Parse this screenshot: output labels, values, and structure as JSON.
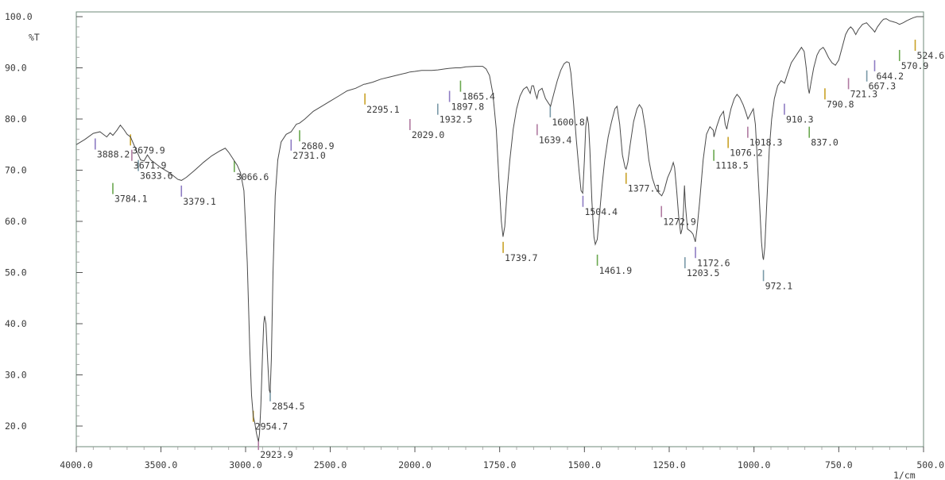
{
  "chart_data": {
    "type": "line",
    "title": "",
    "xlabel": "",
    "ylabel": "%T",
    "xunit": "1/cm",
    "xlim": [
      4000.0,
      500.0
    ],
    "ylim": [
      15.0,
      100.0
    ],
    "grid": false,
    "x_ticks": [
      "4000.0",
      "3500.0",
      "3000.0",
      "2500.0",
      "2000.0",
      "1750.0",
      "1500.0",
      "1250.0",
      "1000.0",
      "750.0",
      "500.0"
    ],
    "y_ticks": [
      "100.0",
      "90.0",
      "80.0",
      "70.0",
      "60.0",
      "50.0",
      "40.0",
      "30.0",
      "20.0"
    ],
    "series": [
      {
        "values": [
          [
            4000,
            75.0
          ],
          [
            3950,
            76.0
          ],
          [
            3900,
            77.2
          ],
          [
            3860,
            77.5
          ],
          [
            3820,
            76.5
          ],
          [
            3800,
            77.3
          ],
          [
            3784,
            76.8
          ],
          [
            3760,
            77.8
          ],
          [
            3740,
            78.8
          ],
          [
            3720,
            78.0
          ],
          [
            3700,
            77.0
          ],
          [
            3680,
            76.5
          ],
          [
            3660,
            75.0
          ],
          [
            3640,
            73.5
          ],
          [
            3620,
            72.0
          ],
          [
            3600,
            71.8
          ],
          [
            3580,
            73.0
          ],
          [
            3560,
            72.0
          ],
          [
            3540,
            71.5
          ],
          [
            3520,
            71.0
          ],
          [
            3500,
            70.5
          ],
          [
            3450,
            69.5
          ],
          [
            3400,
            68.2
          ],
          [
            3379,
            68.0
          ],
          [
            3350,
            68.6
          ],
          [
            3300,
            70.0
          ],
          [
            3250,
            71.5
          ],
          [
            3200,
            72.8
          ],
          [
            3150,
            73.8
          ],
          [
            3120,
            74.3
          ],
          [
            3100,
            73.5
          ],
          [
            3080,
            72.5
          ],
          [
            3066,
            71.8
          ],
          [
            3050,
            71.0
          ],
          [
            3030,
            69.5
          ],
          [
            3010,
            66.0
          ],
          [
            2990,
            52.0
          ],
          [
            2975,
            35.0
          ],
          [
            2965,
            26.0
          ],
          [
            2955,
            22.0
          ],
          [
            2945,
            20.5
          ],
          [
            2935,
            18.5
          ],
          [
            2928,
            17.5
          ],
          [
            2924,
            17.0
          ],
          [
            2918,
            18.5
          ],
          [
            2910,
            24.0
          ],
          [
            2900,
            34.0
          ],
          [
            2893,
            40.0
          ],
          [
            2888,
            41.5
          ],
          [
            2880,
            40.0
          ],
          [
            2870,
            33.0
          ],
          [
            2860,
            27.0
          ],
          [
            2855,
            26.5
          ],
          [
            2848,
            33.0
          ],
          [
            2838,
            50.0
          ],
          [
            2825,
            65.0
          ],
          [
            2810,
            72.0
          ],
          [
            2790,
            75.5
          ],
          [
            2760,
            77.0
          ],
          [
            2731,
            77.5
          ],
          [
            2700,
            79.0
          ],
          [
            2681,
            79.2
          ],
          [
            2650,
            80.0
          ],
          [
            2600,
            81.5
          ],
          [
            2550,
            82.5
          ],
          [
            2500,
            83.5
          ],
          [
            2450,
            84.5
          ],
          [
            2400,
            85.5
          ],
          [
            2350,
            86.0
          ],
          [
            2300,
            86.8
          ],
          [
            2295,
            86.8
          ],
          [
            2250,
            87.2
          ],
          [
            2200,
            87.8
          ],
          [
            2150,
            88.2
          ],
          [
            2100,
            88.6
          ],
          [
            2050,
            89.0
          ],
          [
            2029,
            89.2
          ],
          [
            2000,
            89.3
          ],
          [
            1980,
            89.5
          ],
          [
            1950,
            89.5
          ],
          [
            1932,
            89.6
          ],
          [
            1910,
            89.8
          ],
          [
            1898,
            89.9
          ],
          [
            1880,
            90.0
          ],
          [
            1866,
            90.0
          ],
          [
            1850,
            90.2
          ],
          [
            1820,
            90.3
          ],
          [
            1800,
            90.3
          ],
          [
            1790,
            89.8
          ],
          [
            1780,
            88.5
          ],
          [
            1770,
            85.0
          ],
          [
            1760,
            78.0
          ],
          [
            1752,
            68.0
          ],
          [
            1745,
            60.0
          ],
          [
            1740,
            57.0
          ],
          [
            1735,
            59.0
          ],
          [
            1728,
            66.0
          ],
          [
            1720,
            72.0
          ],
          [
            1710,
            78.0
          ],
          [
            1700,
            82.0
          ],
          [
            1690,
            84.5
          ],
          [
            1680,
            85.8
          ],
          [
            1670,
            86.3
          ],
          [
            1660,
            85.0
          ],
          [
            1655,
            86.5
          ],
          [
            1650,
            86.5
          ],
          [
            1645,
            85.0
          ],
          [
            1640,
            84.0
          ],
          [
            1635,
            85.5
          ],
          [
            1625,
            86.0
          ],
          [
            1615,
            84.0
          ],
          [
            1605,
            83.0
          ],
          [
            1600,
            82.5
          ],
          [
            1590,
            85.0
          ],
          [
            1580,
            87.5
          ],
          [
            1570,
            89.5
          ],
          [
            1560,
            90.8
          ],
          [
            1552,
            91.2
          ],
          [
            1545,
            91.0
          ],
          [
            1540,
            89.0
          ],
          [
            1532,
            83.0
          ],
          [
            1524,
            76.0
          ],
          [
            1516,
            70.0
          ],
          [
            1510,
            66.0
          ],
          [
            1505,
            65.5
          ],
          [
            1500,
            72.0
          ],
          [
            1496,
            78.5
          ],
          [
            1492,
            80.5
          ],
          [
            1488,
            79.0
          ],
          [
            1484,
            74.0
          ],
          [
            1478,
            64.0
          ],
          [
            1472,
            57.0
          ],
          [
            1468,
            55.5
          ],
          [
            1462,
            56.5
          ],
          [
            1456,
            61.0
          ],
          [
            1448,
            67.0
          ],
          [
            1440,
            72.0
          ],
          [
            1430,
            76.5
          ],
          [
            1420,
            79.5
          ],
          [
            1410,
            82.0
          ],
          [
            1404,
            82.5
          ],
          [
            1396,
            79.0
          ],
          [
            1388,
            73.0
          ],
          [
            1380,
            70.5
          ],
          [
            1377,
            70.2
          ],
          [
            1372,
            71.5
          ],
          [
            1365,
            75.0
          ],
          [
            1355,
            79.5
          ],
          [
            1345,
            82.0
          ],
          [
            1338,
            82.8
          ],
          [
            1330,
            82.0
          ],
          [
            1320,
            78.0
          ],
          [
            1310,
            72.0
          ],
          [
            1300,
            68.5
          ],
          [
            1290,
            66.5
          ],
          [
            1280,
            65.5
          ],
          [
            1272,
            65.0
          ],
          [
            1265,
            66.0
          ],
          [
            1255,
            68.5
          ],
          [
            1245,
            70.0
          ],
          [
            1238,
            71.5
          ],
          [
            1234,
            70.5
          ],
          [
            1228,
            66.0
          ],
          [
            1222,
            61.0
          ],
          [
            1216,
            57.5
          ],
          [
            1212,
            58.5
          ],
          [
            1208,
            62.0
          ],
          [
            1205,
            67.0
          ],
          [
            1202,
            63.0
          ],
          [
            1196,
            58.5
          ],
          [
            1186,
            58.0
          ],
          [
            1180,
            57.5
          ],
          [
            1173,
            56.0
          ],
          [
            1168,
            58.5
          ],
          [
            1160,
            64.0
          ],
          [
            1150,
            72.0
          ],
          [
            1140,
            77.0
          ],
          [
            1130,
            78.5
          ],
          [
            1120,
            77.8
          ],
          [
            1118,
            76.5
          ],
          [
            1110,
            78.5
          ],
          [
            1100,
            80.5
          ],
          [
            1090,
            81.5
          ],
          [
            1085,
            79.0
          ],
          [
            1080,
            78.0
          ],
          [
            1076,
            79.5
          ],
          [
            1068,
            82.0
          ],
          [
            1058,
            84.0
          ],
          [
            1050,
            84.8
          ],
          [
            1042,
            84.2
          ],
          [
            1032,
            82.8
          ],
          [
            1025,
            81.5
          ],
          [
            1018,
            80.0
          ],
          [
            1010,
            81.0
          ],
          [
            1002,
            82.0
          ],
          [
            996,
            79.0
          ],
          [
            990,
            72.0
          ],
          [
            984,
            64.0
          ],
          [
            978,
            56.0
          ],
          [
            974,
            53.0
          ],
          [
            972,
            52.5
          ],
          [
            968,
            55.0
          ],
          [
            962,
            64.0
          ],
          [
            955,
            74.0
          ],
          [
            948,
            80.0
          ],
          [
            940,
            84.0
          ],
          [
            930,
            86.5
          ],
          [
            920,
            87.5
          ],
          [
            910,
            87.0
          ],
          [
            900,
            89.0
          ],
          [
            890,
            91.0
          ],
          [
            880,
            92.0
          ],
          [
            870,
            93.0
          ],
          [
            860,
            94.0
          ],
          [
            852,
            93.2
          ],
          [
            846,
            90.0
          ],
          [
            840,
            86.0
          ],
          [
            837,
            85.0
          ],
          [
            832,
            87.0
          ],
          [
            824,
            90.0
          ],
          [
            814,
            92.5
          ],
          [
            806,
            93.5
          ],
          [
            796,
            94.0
          ],
          [
            791,
            93.5
          ],
          [
            780,
            92.0
          ],
          [
            770,
            91.0
          ],
          [
            760,
            90.5
          ],
          [
            750,
            91.5
          ],
          [
            740,
            94.0
          ],
          [
            730,
            96.5
          ],
          [
            722,
            97.5
          ],
          [
            715,
            98.0
          ],
          [
            708,
            97.5
          ],
          [
            700,
            96.5
          ],
          [
            692,
            97.5
          ],
          [
            680,
            98.5
          ],
          [
            668,
            98.8
          ],
          [
            660,
            98.2
          ],
          [
            650,
            97.5
          ],
          [
            644,
            97.0
          ],
          [
            636,
            98.0
          ],
          [
            625,
            99.0
          ],
          [
            618,
            99.5
          ],
          [
            610,
            99.6
          ],
          [
            600,
            99.2
          ],
          [
            590,
            99.0
          ],
          [
            580,
            98.8
          ],
          [
            571,
            98.5
          ],
          [
            560,
            98.8
          ],
          [
            550,
            99.2
          ],
          [
            540,
            99.5
          ],
          [
            530,
            99.8
          ],
          [
            520,
            100.0
          ],
          [
            510,
            100.0
          ],
          [
            500,
            100.0
          ]
        ]
      }
    ],
    "peak_labels": [
      {
        "text": "3888.2",
        "x": 3888.2,
        "y": 76.2
      },
      {
        "text": "3784.1",
        "x": 3784.1,
        "y": 67.5
      },
      {
        "text": "3679.9",
        "x": 3679.9,
        "y": 77.0
      },
      {
        "text": "3671.9",
        "x": 3671.9,
        "y": 74.0
      },
      {
        "text": "3633.6",
        "x": 3633.6,
        "y": 72.0
      },
      {
        "text": "3379.1",
        "x": 3379.1,
        "y": 67.0
      },
      {
        "text": "3066.6",
        "x": 3066.6,
        "y": 71.8
      },
      {
        "text": "2954.7",
        "x": 2954.7,
        "y": 23.0
      },
      {
        "text": "2923.9",
        "x": 2923.9,
        "y": 17.5
      },
      {
        "text": "2854.5",
        "x": 2854.5,
        "y": 27.0
      },
      {
        "text": "2731.0",
        "x": 2731.0,
        "y": 76.0
      },
      {
        "text": "2680.9",
        "x": 2680.9,
        "y": 77.8
      },
      {
        "text": "2295.1",
        "x": 2295.1,
        "y": 85.0
      },
      {
        "text": "2029.0",
        "x": 2029.0,
        "y": 80.0
      },
      {
        "text": "1932.5",
        "x": 1932.5,
        "y": 83.0
      },
      {
        "text": "1897.8",
        "x": 1897.8,
        "y": 85.5
      },
      {
        "text": "1865.4",
        "x": 1865.4,
        "y": 87.5
      },
      {
        "text": "1739.7",
        "x": 1739.7,
        "y": 56.0
      },
      {
        "text": "1639.4",
        "x": 1639.4,
        "y": 79.0
      },
      {
        "text": "1600.8",
        "x": 1600.8,
        "y": 82.5
      },
      {
        "text": "1504.4",
        "x": 1504.4,
        "y": 65.0
      },
      {
        "text": "1461.9",
        "x": 1461.9,
        "y": 53.5
      },
      {
        "text": "1377.1",
        "x": 1377.1,
        "y": 69.5
      },
      {
        "text": "1272.9",
        "x": 1272.9,
        "y": 63.0
      },
      {
        "text": "1203.5",
        "x": 1203.5,
        "y": 53.0
      },
      {
        "text": "1172.6",
        "x": 1172.6,
        "y": 55.0
      },
      {
        "text": "1118.5",
        "x": 1118.5,
        "y": 74.0
      },
      {
        "text": "1076.2",
        "x": 1076.2,
        "y": 76.5
      },
      {
        "text": "1018.3",
        "x": 1018.3,
        "y": 78.5
      },
      {
        "text": "972.1",
        "x": 972.1,
        "y": 50.5
      },
      {
        "text": "910.3",
        "x": 910.3,
        "y": 83.0
      },
      {
        "text": "837.0",
        "x": 837.0,
        "y": 78.5
      },
      {
        "text": "790.8",
        "x": 790.8,
        "y": 86.0
      },
      {
        "text": "721.3",
        "x": 721.3,
        "y": 88.0
      },
      {
        "text": "667.3",
        "x": 667.3,
        "y": 89.5
      },
      {
        "text": "644.2",
        "x": 644.2,
        "y": 91.5
      },
      {
        "text": "570.9",
        "x": 570.9,
        "y": 93.5
      },
      {
        "text": "524.6",
        "x": 524.6,
        "y": 95.5
      }
    ]
  }
}
